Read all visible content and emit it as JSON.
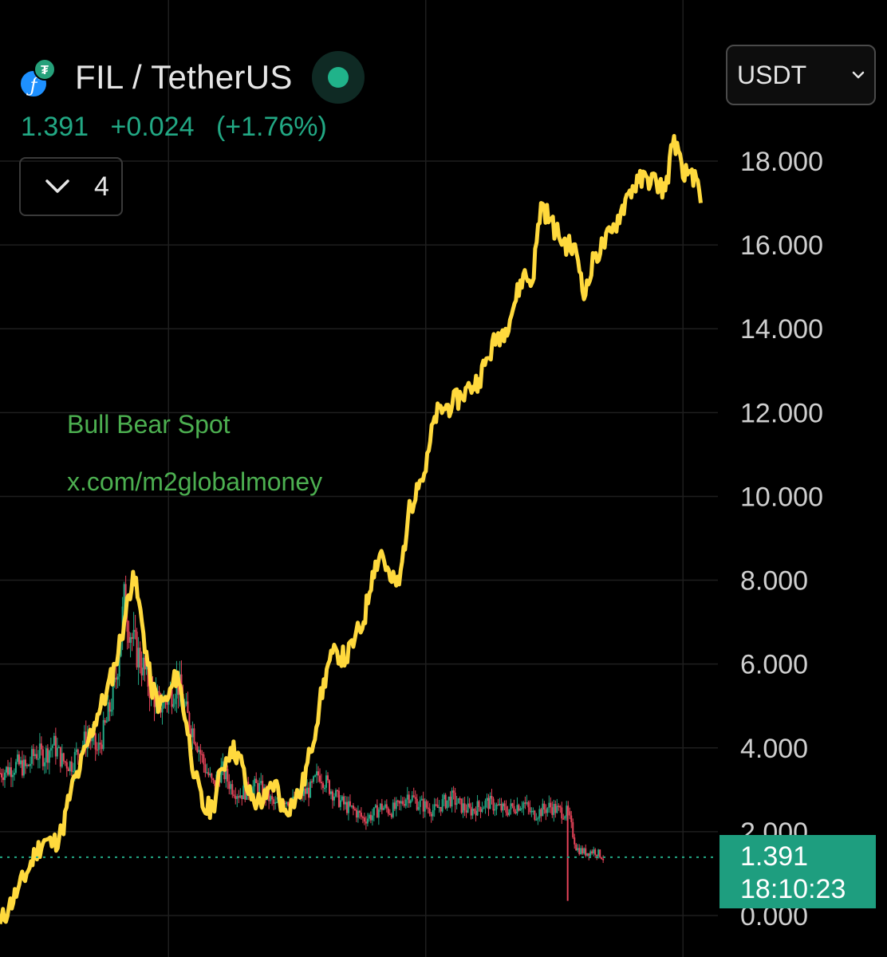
{
  "header": {
    "pair_title": "FIL / TetherUS",
    "base_icon": "filecoin-icon",
    "quote_icon": "tether-icon",
    "status": "market-open"
  },
  "ticker": {
    "last_price": "1.391",
    "change": "+0.024",
    "change_pct": "(+1.76%)"
  },
  "indicators_toggle": {
    "icon": "chevron-down-icon",
    "count": "4"
  },
  "currency_select": {
    "value": "USDT",
    "icon": "chevron-down-icon"
  },
  "watermark": {
    "line1": "Bull Bear Spot",
    "line2": "x.com/m2globalmoney"
  },
  "price_badge": {
    "price": "1.391",
    "countdown": "18:10:23"
  },
  "colors": {
    "background": "#000000",
    "overlay_line": "#ffd93d",
    "up_candle": "#22a884",
    "down_candle": "#e8445a",
    "price_line": "#22a884",
    "grid": "#1e1e1e",
    "axis_text": "#cfcfcf"
  },
  "chart_data": {
    "type": "line",
    "title": "FIL / TetherUS",
    "y_axis": {
      "ticks": [
        "18.000",
        "16.000",
        "14.000",
        "12.000",
        "10.000",
        "8.000",
        "6.000",
        "4.000",
        "2.000",
        "0.000"
      ],
      "tick_values": [
        18,
        16,
        14,
        12,
        10,
        8,
        6,
        4,
        2,
        0
      ],
      "range": [
        -0.2,
        19.5
      ],
      "position": "right"
    },
    "grid": true,
    "current_price": 1.391,
    "series": [
      {
        "style": "candles",
        "color_up": "#22a884",
        "color_down": "#e8445a",
        "x": [
          0,
          0.01,
          0.02,
          0.03,
          0.04,
          0.05,
          0.06,
          0.07,
          0.08,
          0.09,
          0.1,
          0.11,
          0.12,
          0.13,
          0.14,
          0.15,
          0.16,
          0.17,
          0.18,
          0.19,
          0.2,
          0.21,
          0.22,
          0.23,
          0.24,
          0.25,
          0.26,
          0.27,
          0.28,
          0.29,
          0.3,
          0.31,
          0.32,
          0.33,
          0.34,
          0.35,
          0.36,
          0.37,
          0.38,
          0.39,
          0.4,
          0.41,
          0.42,
          0.43,
          0.44,
          0.45,
          0.46,
          0.47,
          0.48,
          0.49,
          0.5,
          0.51,
          0.52,
          0.53,
          0.54,
          0.55,
          0.56,
          0.57,
          0.58,
          0.59,
          0.6,
          0.61,
          0.62,
          0.63,
          0.64,
          0.65,
          0.66,
          0.67,
          0.68
        ],
        "values": [
          3.4,
          3.5,
          3.6,
          3.5,
          3.9,
          3.8,
          4.1,
          3.7,
          3.6,
          4.0,
          4.3,
          3.9,
          4.6,
          5.5,
          7.5,
          6.5,
          6.0,
          5.4,
          5.0,
          5.2,
          5.6,
          4.8,
          4.3,
          3.6,
          3.1,
          3.5,
          3.1,
          2.9,
          3.0,
          3.1,
          2.9,
          2.6,
          2.8,
          2.7,
          2.9,
          3.0,
          3.4,
          3.1,
          2.8,
          2.6,
          2.5,
          2.3,
          2.4,
          2.6,
          2.5,
          2.6,
          2.9,
          2.7,
          2.6,
          2.5,
          2.7,
          2.8,
          2.6,
          2.5,
          2.6,
          2.7,
          2.6,
          2.5,
          2.6,
          2.7,
          2.4,
          2.5,
          2.6,
          2.5,
          2.45,
          1.6,
          1.5,
          1.55,
          1.391
        ]
      },
      {
        "style": "line",
        "color": "#ffd93d",
        "x": [
          0,
          0.01,
          0.02,
          0.03,
          0.04,
          0.05,
          0.06,
          0.07,
          0.08,
          0.09,
          0.1,
          0.11,
          0.12,
          0.13,
          0.14,
          0.15,
          0.16,
          0.17,
          0.18,
          0.19,
          0.2,
          0.21,
          0.22,
          0.23,
          0.24,
          0.25,
          0.26,
          0.27,
          0.28,
          0.29,
          0.3,
          0.31,
          0.32,
          0.33,
          0.34,
          0.35,
          0.36,
          0.37,
          0.38,
          0.39,
          0.4,
          0.41,
          0.42,
          0.43,
          0.44,
          0.45,
          0.46,
          0.47,
          0.48,
          0.49,
          0.5,
          0.51,
          0.52,
          0.53,
          0.54,
          0.55,
          0.56,
          0.57,
          0.58,
          0.59,
          0.6,
          0.61,
          0.62,
          0.63,
          0.64,
          0.65,
          0.66,
          0.67,
          0.68,
          0.69,
          0.7,
          0.71,
          0.72,
          0.73,
          0.74,
          0.75,
          0.76,
          0.77,
          0.78,
          0.79
        ],
        "values": [
          -0.2,
          0.2,
          0.6,
          1.0,
          1.5,
          1.8,
          1.7,
          2.0,
          3.0,
          3.5,
          4.2,
          4.8,
          5.3,
          6.0,
          7.0,
          8.2,
          7.0,
          5.5,
          5.0,
          5.2,
          5.8,
          4.6,
          3.3,
          2.5,
          2.6,
          3.5,
          4.0,
          3.8,
          2.9,
          2.7,
          2.8,
          3.2,
          2.5,
          2.7,
          3.0,
          3.9,
          5.0,
          6.0,
          6.3,
          6.1,
          6.6,
          7.0,
          8.2,
          8.7,
          8.0,
          7.9,
          9.5,
          10.3,
          10.6,
          11.9,
          12.1,
          12.2,
          12.4,
          12.6,
          12.8,
          13.3,
          13.8,
          14.0,
          14.6,
          15.3,
          15.1,
          17.0,
          16.6,
          16.2,
          16.0,
          15.8,
          14.8,
          15.7,
          16.0,
          16.3,
          16.8,
          17.3,
          17.5,
          17.6,
          17.5,
          17.3,
          18.6,
          17.6,
          17.8,
          17.0
        ]
      }
    ]
  }
}
